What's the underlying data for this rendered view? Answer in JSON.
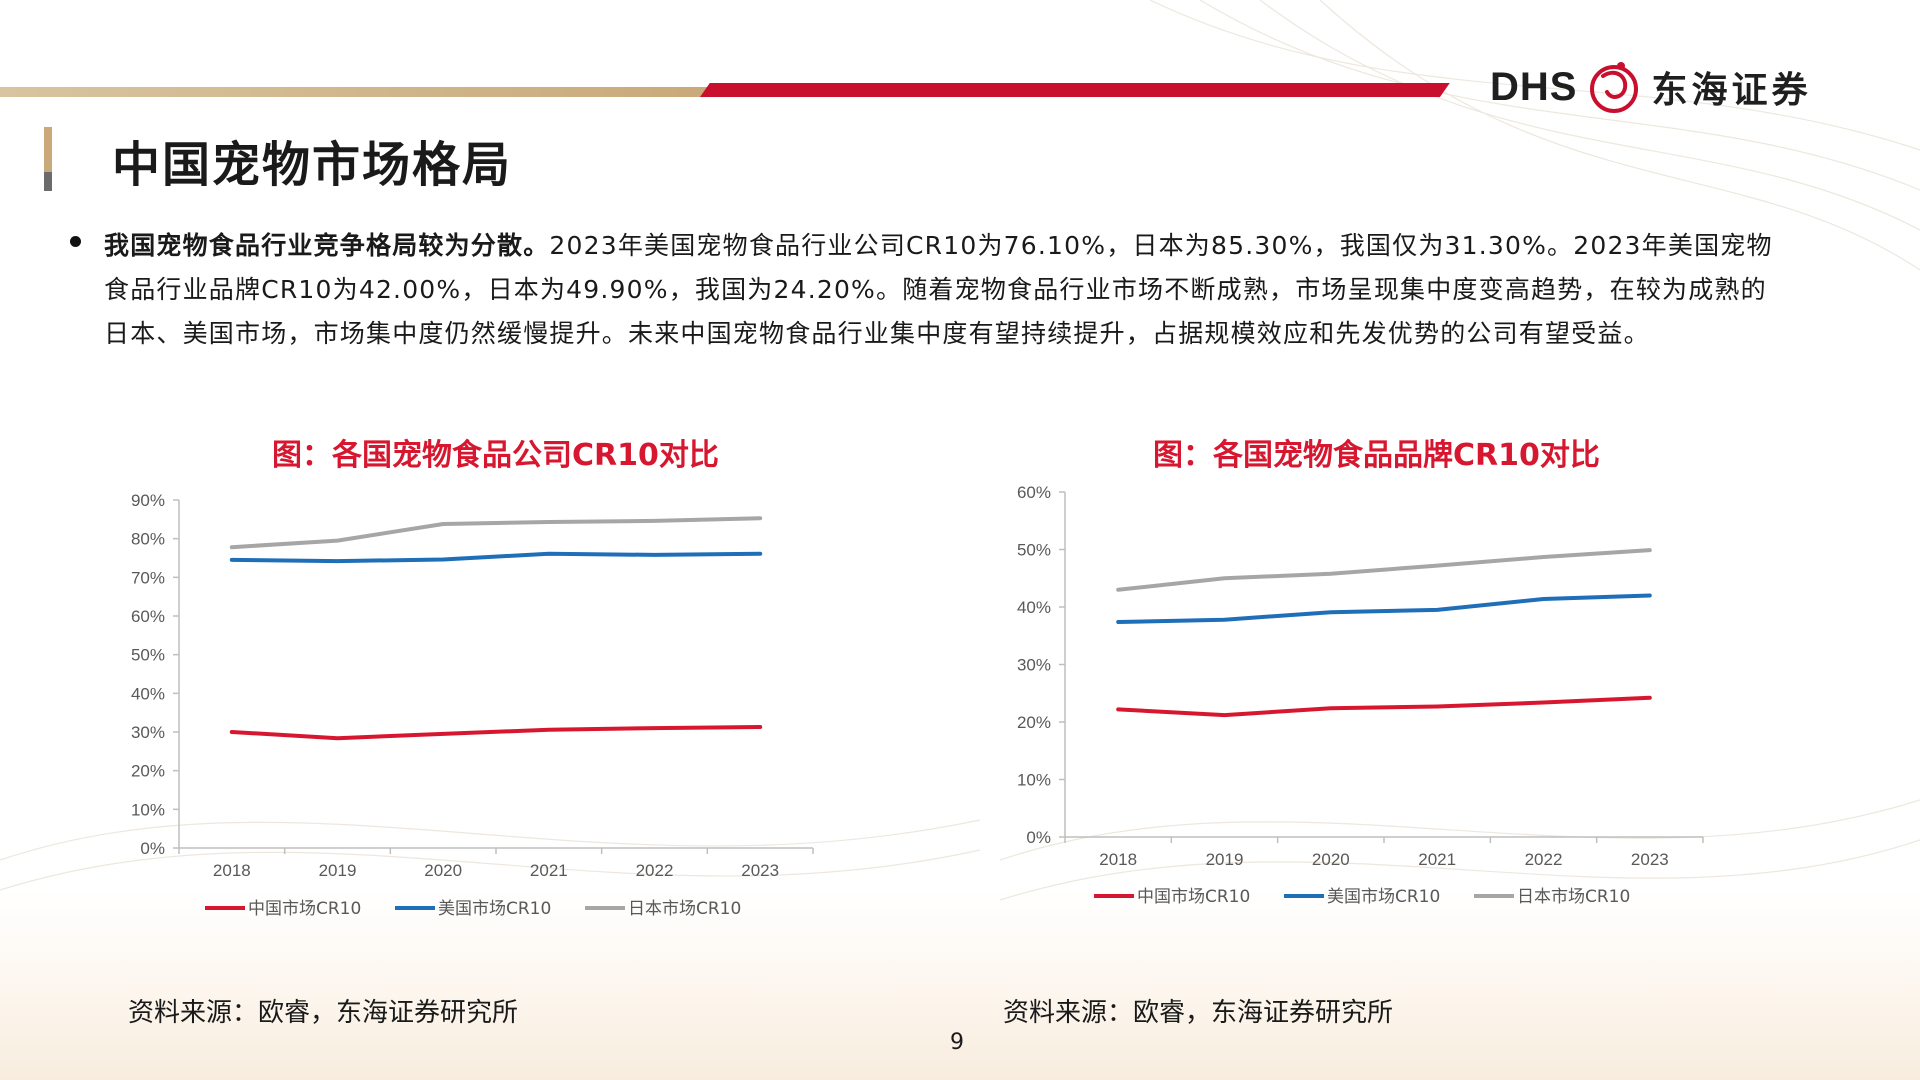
{
  "brand": {
    "logo_text": "DHS",
    "company": "东海证券"
  },
  "page": {
    "title": "中国宠物市场格局",
    "bullet_bold": "我国宠物食品行业竞争格局较为分散。",
    "bullet_text": "2023年美国宠物食品行业公司CR10为76.10%，日本为85.30%，我国仅为31.30%。2023年美国宠物食品行业品牌CR10为42.00%，日本为49.90%，我国为24.20%。随着宠物食品行业市场不断成熟，市场呈现集中度变高趋势，在较为成熟的日本、美国市场，市场集中度仍然缓慢提升。未来中国宠物食品行业集中度有望持续提升，占据规模效应和先发优势的公司有望受益。",
    "page_number": "9"
  },
  "colors": {
    "china": "#d7172f",
    "usa": "#1f6fb8",
    "japan": "#a6a6a6",
    "accent_red": "#c8102e",
    "accent_gold": "#c9a979"
  },
  "charts": [
    {
      "title": "图：各国宠物食品公司CR10对比",
      "source": "资料来源：欧睿，东海证券研究所"
    },
    {
      "title": "图：各国宠物食品品牌CR10对比",
      "source": "资料来源：欧睿，东海证券研究所"
    }
  ],
  "chart_data": [
    {
      "type": "line",
      "title": "图：各国宠物食品公司CR10对比",
      "x": [
        "2018",
        "2019",
        "2020",
        "2021",
        "2022",
        "2023"
      ],
      "ylim": [
        0,
        90
      ],
      "yticks": [
        0,
        10,
        20,
        30,
        40,
        50,
        60,
        70,
        80,
        90
      ],
      "ytick_labels": [
        "0%",
        "10%",
        "20%",
        "30%",
        "40%",
        "50%",
        "60%",
        "70%",
        "80%",
        "90%"
      ],
      "grid": false,
      "legend": "bottom",
      "series": [
        {
          "name": "中国市场CR10",
          "color": "#d7172f",
          "values": [
            30.0,
            28.4,
            29.5,
            30.6,
            31.0,
            31.3
          ]
        },
        {
          "name": "美国市场CR10",
          "color": "#1f6fb8",
          "values": [
            74.5,
            74.2,
            74.6,
            76.1,
            75.8,
            76.1
          ]
        },
        {
          "name": "日本市场CR10",
          "color": "#a6a6a6",
          "values": [
            77.8,
            79.5,
            83.8,
            84.3,
            84.6,
            85.3
          ]
        }
      ]
    },
    {
      "type": "line",
      "title": "图：各国宠物食品品牌CR10对比",
      "x": [
        "2018",
        "2019",
        "2020",
        "2021",
        "2022",
        "2023"
      ],
      "ylim": [
        0,
        60
      ],
      "yticks": [
        0,
        10,
        20,
        30,
        40,
        50,
        60
      ],
      "ytick_labels": [
        "0%",
        "10%",
        "20%",
        "30%",
        "40%",
        "50%",
        "60%"
      ],
      "grid": false,
      "legend": "bottom",
      "series": [
        {
          "name": "中国市场CR10",
          "color": "#d7172f",
          "values": [
            22.2,
            21.2,
            22.4,
            22.7,
            23.4,
            24.2
          ]
        },
        {
          "name": "美国市场CR10",
          "color": "#1f6fb8",
          "values": [
            37.4,
            37.8,
            39.1,
            39.5,
            41.4,
            42.0
          ]
        },
        {
          "name": "日本市场CR10",
          "color": "#a6a6a6",
          "values": [
            43.0,
            45.0,
            45.8,
            47.2,
            48.7,
            49.9
          ]
        }
      ]
    }
  ]
}
